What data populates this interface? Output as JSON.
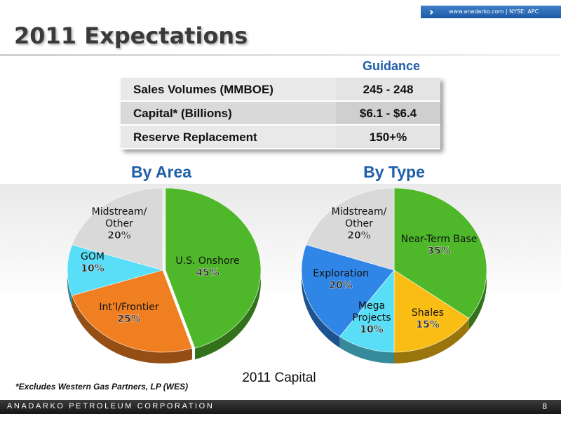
{
  "header": {
    "url_text": "www.anadarko.com  |  NYSE: APC",
    "title": "2011 Expectations"
  },
  "guidance": {
    "heading": "Guidance",
    "rows": [
      {
        "label": "Sales Volumes (MMBOE)",
        "value": "245 - 248"
      },
      {
        "label": "Capital* (Billions)",
        "value": "$6.1 - $6.4"
      },
      {
        "label": "Reserve Replacement",
        "value": "150+%"
      }
    ]
  },
  "chart_data": [
    {
      "type": "pie",
      "title": "By Area",
      "slices": [
        {
          "label": [
            "U.S. Onshore"
          ],
          "pct_text": "45%",
          "value": 45,
          "color": "#4fb82a"
        },
        {
          "label": [
            "Int’l/Frontier"
          ],
          "pct_text": "25%",
          "value": 25,
          "color": "#f07f21"
        },
        {
          "label": [
            "GOM"
          ],
          "pct_text": "10%",
          "value": 10,
          "color": "#59def7"
        },
        {
          "label": [
            "Midstream/",
            "Other"
          ],
          "pct_text": "20%",
          "value": 20,
          "color": "#d9d9d9"
        }
      ]
    },
    {
      "type": "pie",
      "title": "By Type",
      "slices": [
        {
          "label": [
            "Near-Term Base"
          ],
          "pct_text": "35%",
          "value": 35,
          "color": "#4fb82a"
        },
        {
          "label": [
            "Shales"
          ],
          "pct_text": "15%",
          "value": 15,
          "color": "#f9bd14"
        },
        {
          "label": [
            "Mega",
            "Projects"
          ],
          "pct_text": "10%",
          "value": 10,
          "color": "#59def7"
        },
        {
          "label": [
            "Exploration"
          ],
          "pct_text": "20%",
          "value": 20,
          "color": "#2f86e6"
        },
        {
          "label": [
            "Midstream/",
            "Other"
          ],
          "pct_text": "20%",
          "value": 20,
          "color": "#d9d9d9"
        }
      ]
    }
  ],
  "caption": "2011 Capital",
  "footnote": "*Excludes Western Gas Partners, LP (WES)",
  "footer": {
    "company": "ANADARKO PETROLEUM CORPORATION",
    "page_number": "8"
  }
}
